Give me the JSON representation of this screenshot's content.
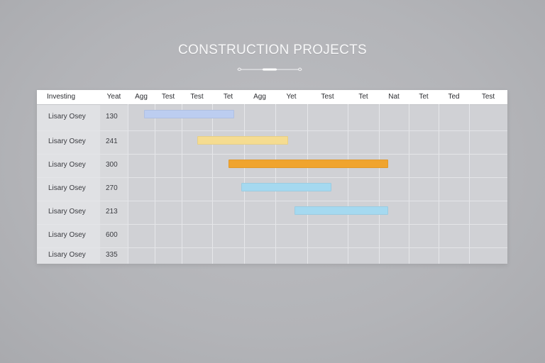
{
  "chart_data": {
    "type": "gantt",
    "title": "CONSTRUCTION PROJECTS",
    "header": {
      "label_column": "Investing",
      "value_column": "Yeat",
      "periods": [
        "Agg",
        "Test",
        "Test",
        "Tet",
        "Agg",
        "Yet",
        "Test",
        "Tet",
        "Nat",
        "Tet",
        "Ted",
        "Test"
      ]
    },
    "rows": [
      {
        "label": "Lisary Osey",
        "value": "130",
        "start": 0.6,
        "end": 3.7,
        "color": "#bccdf0"
      },
      {
        "label": "Lisary Osey",
        "value": "241",
        "start": 2.5,
        "end": 5.4,
        "color": "#f5dc91"
      },
      {
        "label": "Lisary Osey",
        "value": "300",
        "start": 3.5,
        "end": 8.3,
        "color": "#f0a42f"
      },
      {
        "label": "Lisary Osey",
        "value": "270",
        "start": 3.9,
        "end": 6.6,
        "color": "#a5d9f0"
      },
      {
        "label": "Lisary Osey",
        "value": "213",
        "start": 5.6,
        "end": 8.3,
        "color": "#a5d9f0"
      },
      {
        "label": "Lisary Osey",
        "value": "600"
      },
      {
        "label": "Lisary Osey",
        "value": "335"
      }
    ]
  }
}
